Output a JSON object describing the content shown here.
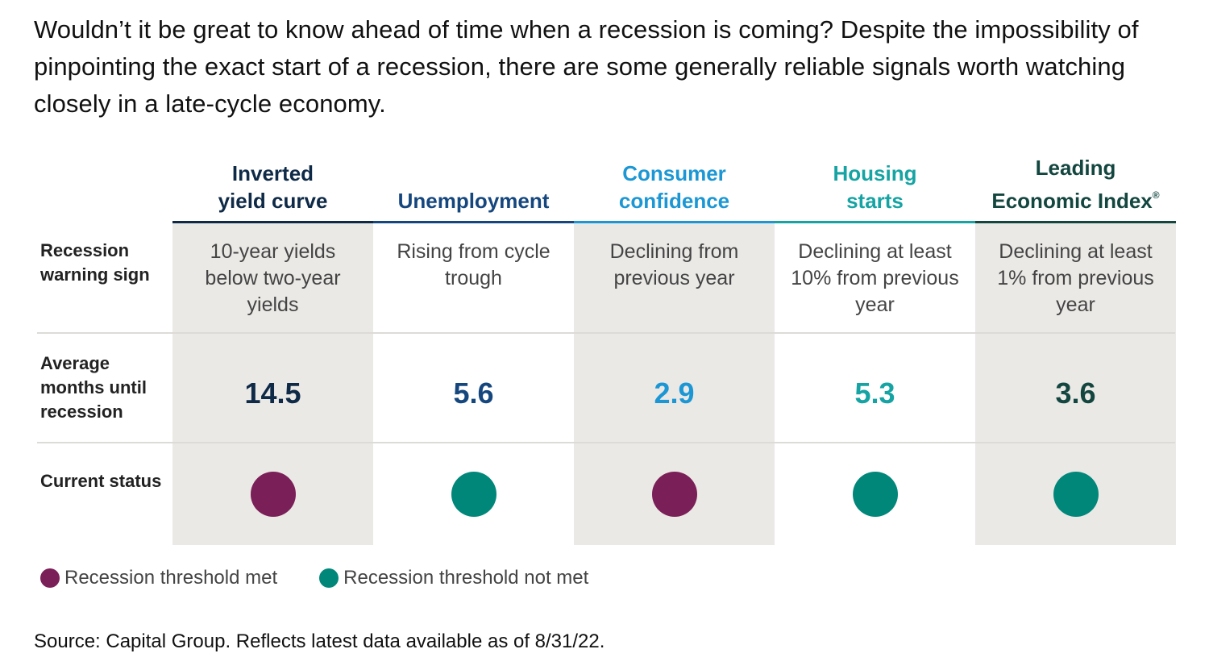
{
  "intro": "Wouldn’t it be great to know ahead of time when a recession is coming? Despite the impossibility of pinpointing the exact start of a recession, there are some generally reliable signals worth watching closely in a late-cycle economy.",
  "row_labels": {
    "sign": "Recession warning sign",
    "months": "Average months until recession",
    "status": "Current status"
  },
  "chart_data": {
    "type": "table",
    "columns": [
      {
        "name": "Inverted yield curve",
        "warning_sign": "10-year yields below two-year yields",
        "avg_months_until_recession": 14.5,
        "current_status": "Recession threshold met",
        "color": "#0e2a47"
      },
      {
        "name": "Unemployment",
        "warning_sign": "Rising from cycle trough",
        "avg_months_until_recession": 5.6,
        "current_status": "Recession threshold not met",
        "color": "#15477e"
      },
      {
        "name": "Consumer confidence",
        "warning_sign": "Declining from previous year",
        "avg_months_until_recession": 2.9,
        "current_status": "Recession threshold met",
        "color": "#1c97d4"
      },
      {
        "name": "Housing starts",
        "warning_sign": "Declining at least 10% from previous year",
        "avg_months_until_recession": 5.3,
        "current_status": "Recession threshold not met",
        "color": "#16a3a3"
      },
      {
        "name": "Leading Economic Index",
        "name_mark": "®",
        "warning_sign": "Declining at least 1% from previous year",
        "avg_months_until_recession": 3.6,
        "current_status": "Recession threshold not met",
        "color": "#13463f"
      }
    ],
    "legend": [
      {
        "label": "Recession threshold met",
        "color": "#7a1f57"
      },
      {
        "label": "Recession threshold not met",
        "color": "#00877a"
      }
    ]
  },
  "source": "Source: Capital Group. Reflects latest data available as of 8/31/22."
}
